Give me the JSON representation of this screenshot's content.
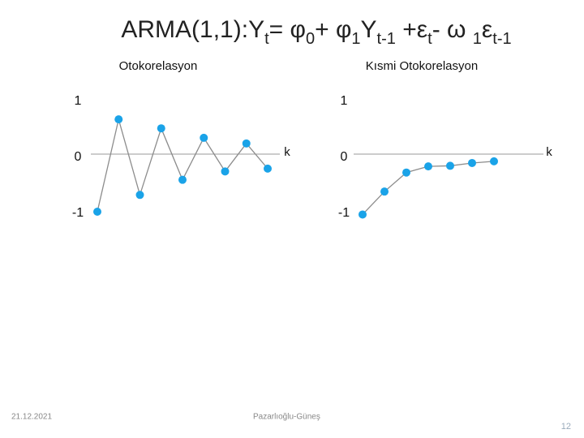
{
  "slide_title": [
    {
      "text": "ARMA(1,1):Y"
    },
    {
      "text": "t",
      "sub": true
    },
    {
      "text": "= φ"
    },
    {
      "text": "0",
      "sub": true
    },
    {
      "text": "+ φ"
    },
    {
      "text": "1",
      "sub": true
    },
    {
      "text": "Y"
    },
    {
      "text": "t-1",
      "sub": true
    },
    {
      "text": " +ε"
    },
    {
      "text": "t",
      "sub": true
    },
    {
      "text": "- ω "
    },
    {
      "text": "1",
      "sub": true
    },
    {
      "text": "ε"
    },
    {
      "text": "t-1",
      "sub": true
    }
  ],
  "chart_data": [
    {
      "type": "line",
      "title": "Otokorelasyon",
      "x_label": "k",
      "x": [
        0,
        1,
        2,
        3,
        4,
        5,
        6,
        7,
        8
      ],
      "values": [
        -1.0,
        0.65,
        -0.7,
        0.49,
        -0.43,
        0.32,
        -0.28,
        0.22,
        -0.23
      ],
      "color": "#1aa3e8",
      "line_color": "#8c8c8c",
      "ylim": [
        -1,
        1
      ],
      "yticks": [
        -1,
        0,
        1
      ]
    },
    {
      "type": "line",
      "title": "Kısmi Otokorelasyon",
      "x_label": "k",
      "x": [
        0,
        1,
        2,
        3,
        4,
        5,
        6
      ],
      "values": [
        -1.05,
        -0.64,
        -0.3,
        -0.19,
        -0.18,
        -0.13,
        -0.1
      ],
      "color": "#1aa3e8",
      "line_color": "#8c8c8c",
      "ylim": [
        -1,
        1
      ],
      "yticks": [
        -1,
        0,
        1
      ]
    }
  ],
  "footer": {
    "date": "21.12.2021",
    "author": "Pazarlıoğlu-Güneş",
    "page": "12"
  }
}
